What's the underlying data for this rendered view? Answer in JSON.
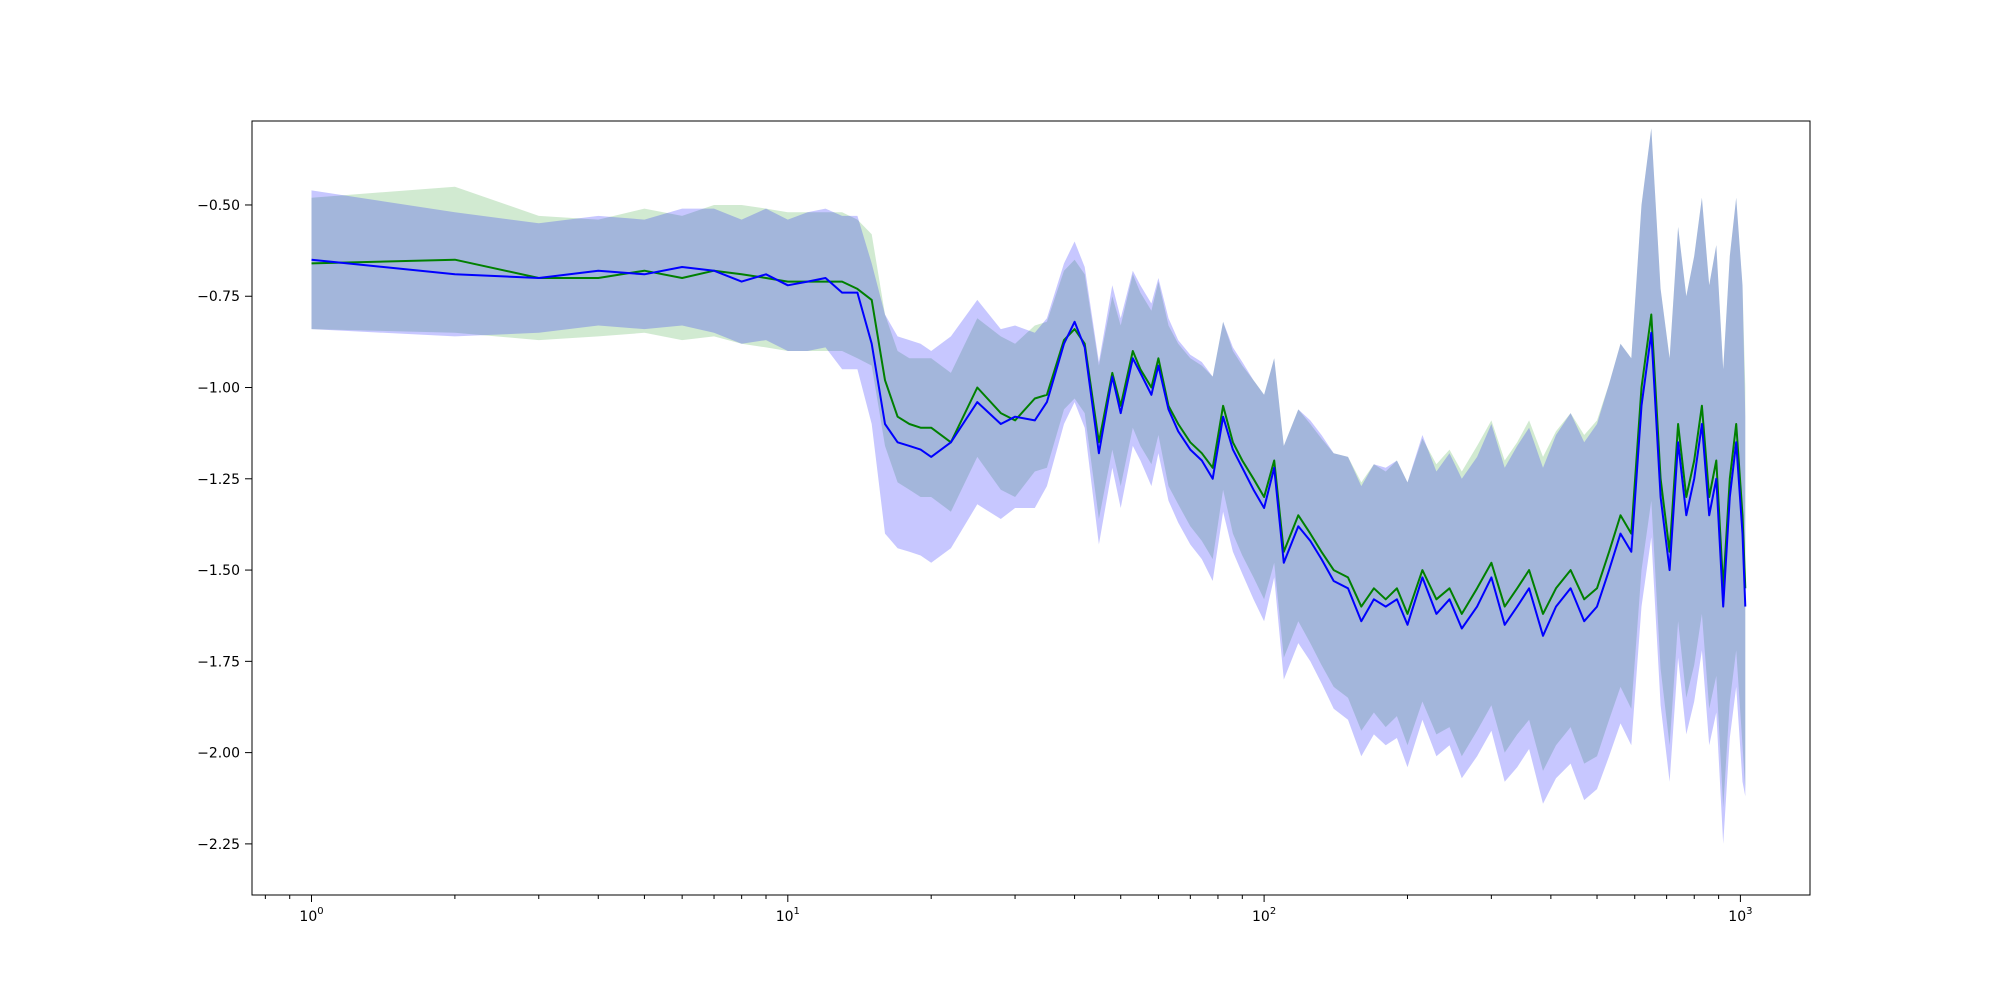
{
  "chart_data": {
    "type": "line",
    "title": "",
    "xlabel": "",
    "ylabel": "",
    "x_scale": "log",
    "xlim": [
      0.75,
      1400
    ],
    "ylim": [
      -2.39,
      -0.27
    ],
    "grid": false,
    "legend": "none",
    "x_ticks": [
      {
        "value": 1,
        "base": "10",
        "exp": "0"
      },
      {
        "value": 10,
        "base": "10",
        "exp": "1"
      },
      {
        "value": 100,
        "base": "10",
        "exp": "2"
      },
      {
        "value": 1000,
        "base": "10",
        "exp": "3"
      }
    ],
    "y_ticks": [
      {
        "value": -0.5,
        "label": "−0.50"
      },
      {
        "value": -0.75,
        "label": "−0.75"
      },
      {
        "value": -1.0,
        "label": "−1.00"
      },
      {
        "value": -1.25,
        "label": "−1.25"
      },
      {
        "value": -1.5,
        "label": "−1.50"
      },
      {
        "value": -1.75,
        "label": "−1.75"
      },
      {
        "value": -2.0,
        "label": "−2.00"
      },
      {
        "value": -2.25,
        "label": "−2.25"
      }
    ],
    "x": [
      1,
      2,
      3,
      4,
      5,
      6,
      7,
      8,
      9,
      10,
      11,
      12,
      13,
      14,
      15,
      16,
      17,
      18,
      19,
      20,
      22,
      25,
      28,
      30,
      33,
      35,
      38,
      40,
      42,
      45,
      48,
      50,
      53,
      55,
      58,
      60,
      63,
      66,
      70,
      74,
      78,
      82,
      86,
      90,
      95,
      100,
      105,
      110,
      118,
      125,
      132,
      140,
      150,
      160,
      170,
      180,
      190,
      200,
      215,
      230,
      245,
      260,
      280,
      300,
      320,
      340,
      360,
      385,
      410,
      440,
      470,
      500,
      530,
      560,
      590,
      620,
      650,
      680,
      710,
      740,
      770,
      800,
      830,
      860,
      890,
      920,
      950,
      980,
      1010,
      1024
    ],
    "series": [
      {
        "color": "#008000",
        "band_color": "#2ca02c",
        "values": [
          -0.66,
          -0.65,
          -0.7,
          -0.7,
          -0.68,
          -0.7,
          -0.68,
          -0.69,
          -0.7,
          -0.71,
          -0.71,
          -0.71,
          -0.71,
          -0.73,
          -0.76,
          -0.98,
          -1.08,
          -1.1,
          -1.11,
          -1.11,
          -1.15,
          -1.0,
          -1.07,
          -1.09,
          -1.03,
          -1.02,
          -0.87,
          -0.84,
          -0.88,
          -1.15,
          -0.96,
          -1.05,
          -0.9,
          -0.95,
          -1.0,
          -0.92,
          -1.05,
          -1.1,
          -1.15,
          -1.18,
          -1.22,
          -1.05,
          -1.15,
          -1.2,
          -1.25,
          -1.3,
          -1.2,
          -1.45,
          -1.35,
          -1.4,
          -1.45,
          -1.5,
          -1.52,
          -1.6,
          -1.55,
          -1.58,
          -1.55,
          -1.62,
          -1.5,
          -1.58,
          -1.55,
          -1.62,
          -1.55,
          -1.48,
          -1.6,
          -1.55,
          -1.5,
          -1.62,
          -1.55,
          -1.5,
          -1.58,
          -1.55,
          -1.45,
          -1.35,
          -1.4,
          -1.0,
          -0.8,
          -1.25,
          -1.45,
          -1.1,
          -1.3,
          -1.2,
          -1.05,
          -1.3,
          -1.2,
          -1.55,
          -1.25,
          -1.1,
          -1.35,
          -1.55
        ],
        "lower": [
          -0.84,
          -0.85,
          -0.87,
          -0.86,
          -0.85,
          -0.87,
          -0.86,
          -0.88,
          -0.89,
          -0.9,
          -0.9,
          -0.9,
          -0.9,
          -0.92,
          -0.94,
          -1.16,
          -1.26,
          -1.28,
          -1.3,
          -1.3,
          -1.34,
          -1.19,
          -1.28,
          -1.3,
          -1.23,
          -1.22,
          -1.06,
          -1.03,
          -1.07,
          -1.36,
          -1.17,
          -1.27,
          -1.11,
          -1.16,
          -1.21,
          -1.13,
          -1.27,
          -1.32,
          -1.38,
          -1.42,
          -1.47,
          -1.28,
          -1.4,
          -1.46,
          -1.52,
          -1.58,
          -1.48,
          -1.74,
          -1.64,
          -1.7,
          -1.76,
          -1.82,
          -1.85,
          -1.94,
          -1.89,
          -1.93,
          -1.9,
          -1.98,
          -1.86,
          -1.95,
          -1.93,
          -2.01,
          -1.94,
          -1.87,
          -2.0,
          -1.95,
          -1.91,
          -2.05,
          -1.98,
          -1.93,
          -2.03,
          -2.01,
          -1.91,
          -1.82,
          -1.88,
          -1.5,
          -1.31,
          -1.77,
          -1.98,
          -1.64,
          -1.85,
          -1.76,
          -1.62,
          -1.88,
          -1.79,
          -2.15,
          -1.86,
          -1.72,
          -1.98,
          -2.1
        ],
        "upper": [
          -0.48,
          -0.45,
          -0.53,
          -0.54,
          -0.51,
          -0.53,
          -0.5,
          -0.5,
          -0.51,
          -0.52,
          -0.52,
          -0.52,
          -0.52,
          -0.54,
          -0.58,
          -0.8,
          -0.9,
          -0.92,
          -0.92,
          -0.92,
          -0.96,
          -0.81,
          -0.86,
          -0.88,
          -0.83,
          -0.82,
          -0.68,
          -0.65,
          -0.69,
          -0.94,
          -0.75,
          -0.83,
          -0.69,
          -0.74,
          -0.79,
          -0.71,
          -0.83,
          -0.88,
          -0.92,
          -0.94,
          -0.97,
          -0.82,
          -0.9,
          -0.94,
          -0.98,
          -1.02,
          -0.92,
          -1.16,
          -1.06,
          -1.1,
          -1.14,
          -1.18,
          -1.19,
          -1.26,
          -1.21,
          -1.23,
          -1.2,
          -1.26,
          -1.14,
          -1.21,
          -1.17,
          -1.23,
          -1.16,
          -1.09,
          -1.2,
          -1.15,
          -1.09,
          -1.19,
          -1.12,
          -1.07,
          -1.13,
          -1.09,
          -0.99,
          -0.88,
          -0.92,
          -0.5,
          -0.29,
          -0.73,
          -0.92,
          -0.56,
          -0.75,
          -0.64,
          -0.48,
          -0.72,
          -0.61,
          -0.95,
          -0.64,
          -0.48,
          -0.72,
          -1.0
        ]
      },
      {
        "color": "#0000ff",
        "band_color": "#0000ff",
        "values": [
          -0.65,
          -0.69,
          -0.7,
          -0.68,
          -0.69,
          -0.67,
          -0.68,
          -0.71,
          -0.69,
          -0.72,
          -0.71,
          -0.7,
          -0.74,
          -0.74,
          -0.88,
          -1.1,
          -1.15,
          -1.16,
          -1.17,
          -1.19,
          -1.15,
          -1.04,
          -1.1,
          -1.08,
          -1.09,
          -1.04,
          -0.88,
          -0.82,
          -0.89,
          -1.18,
          -0.97,
          -1.07,
          -0.92,
          -0.96,
          -1.02,
          -0.94,
          -1.06,
          -1.12,
          -1.17,
          -1.2,
          -1.25,
          -1.08,
          -1.17,
          -1.22,
          -1.28,
          -1.33,
          -1.22,
          -1.48,
          -1.38,
          -1.42,
          -1.47,
          -1.53,
          -1.55,
          -1.64,
          -1.58,
          -1.6,
          -1.58,
          -1.65,
          -1.52,
          -1.62,
          -1.58,
          -1.66,
          -1.6,
          -1.52,
          -1.65,
          -1.6,
          -1.55,
          -1.68,
          -1.6,
          -1.55,
          -1.64,
          -1.6,
          -1.5,
          -1.4,
          -1.45,
          -1.05,
          -0.85,
          -1.3,
          -1.5,
          -1.15,
          -1.35,
          -1.25,
          -1.1,
          -1.35,
          -1.25,
          -1.6,
          -1.3,
          -1.15,
          -1.4,
          -1.6
        ],
        "lower": [
          -0.84,
          -0.86,
          -0.85,
          -0.83,
          -0.84,
          -0.83,
          -0.85,
          -0.88,
          -0.87,
          -0.9,
          -0.9,
          -0.89,
          -0.95,
          -0.95,
          -1.1,
          -1.4,
          -1.44,
          -1.45,
          -1.46,
          -1.48,
          -1.44,
          -1.32,
          -1.36,
          -1.33,
          -1.33,
          -1.27,
          -1.1,
          -1.04,
          -1.11,
          -1.43,
          -1.22,
          -1.33,
          -1.16,
          -1.2,
          -1.27,
          -1.18,
          -1.31,
          -1.37,
          -1.43,
          -1.47,
          -1.53,
          -1.34,
          -1.45,
          -1.51,
          -1.58,
          -1.64,
          -1.52,
          -1.8,
          -1.7,
          -1.75,
          -1.81,
          -1.88,
          -1.91,
          -2.01,
          -1.95,
          -1.98,
          -1.96,
          -2.04,
          -1.91,
          -2.01,
          -1.98,
          -2.07,
          -2.01,
          -1.94,
          -2.08,
          -2.04,
          -1.99,
          -2.14,
          -2.07,
          -2.03,
          -2.13,
          -2.1,
          -2.01,
          -1.92,
          -1.98,
          -1.6,
          -1.41,
          -1.87,
          -2.08,
          -1.74,
          -1.95,
          -1.86,
          -1.72,
          -1.98,
          -1.89,
          -2.25,
          -1.96,
          -1.82,
          -2.08,
          -2.12
        ],
        "upper": [
          -0.46,
          -0.52,
          -0.55,
          -0.53,
          -0.54,
          -0.51,
          -0.51,
          -0.54,
          -0.51,
          -0.54,
          -0.52,
          -0.51,
          -0.53,
          -0.53,
          -0.66,
          -0.8,
          -0.86,
          -0.87,
          -0.88,
          -0.9,
          -0.86,
          -0.76,
          -0.84,
          -0.83,
          -0.85,
          -0.81,
          -0.66,
          -0.6,
          -0.67,
          -0.93,
          -0.72,
          -0.81,
          -0.68,
          -0.72,
          -0.77,
          -0.7,
          -0.81,
          -0.87,
          -0.91,
          -0.93,
          -0.97,
          -0.82,
          -0.89,
          -0.93,
          -0.98,
          -1.02,
          -0.92,
          -1.16,
          -1.06,
          -1.09,
          -1.13,
          -1.18,
          -1.19,
          -1.27,
          -1.21,
          -1.22,
          -1.2,
          -1.26,
          -1.13,
          -1.23,
          -1.18,
          -1.25,
          -1.19,
          -1.1,
          -1.22,
          -1.16,
          -1.11,
          -1.22,
          -1.13,
          -1.07,
          -1.15,
          -1.1,
          -0.99,
          -0.88,
          -0.92,
          -0.5,
          -0.29,
          -0.73,
          -0.92,
          -0.56,
          -0.75,
          -0.64,
          -0.48,
          -0.72,
          -0.61,
          -0.95,
          -0.64,
          -0.48,
          -0.72,
          -1.08
        ]
      }
    ]
  }
}
